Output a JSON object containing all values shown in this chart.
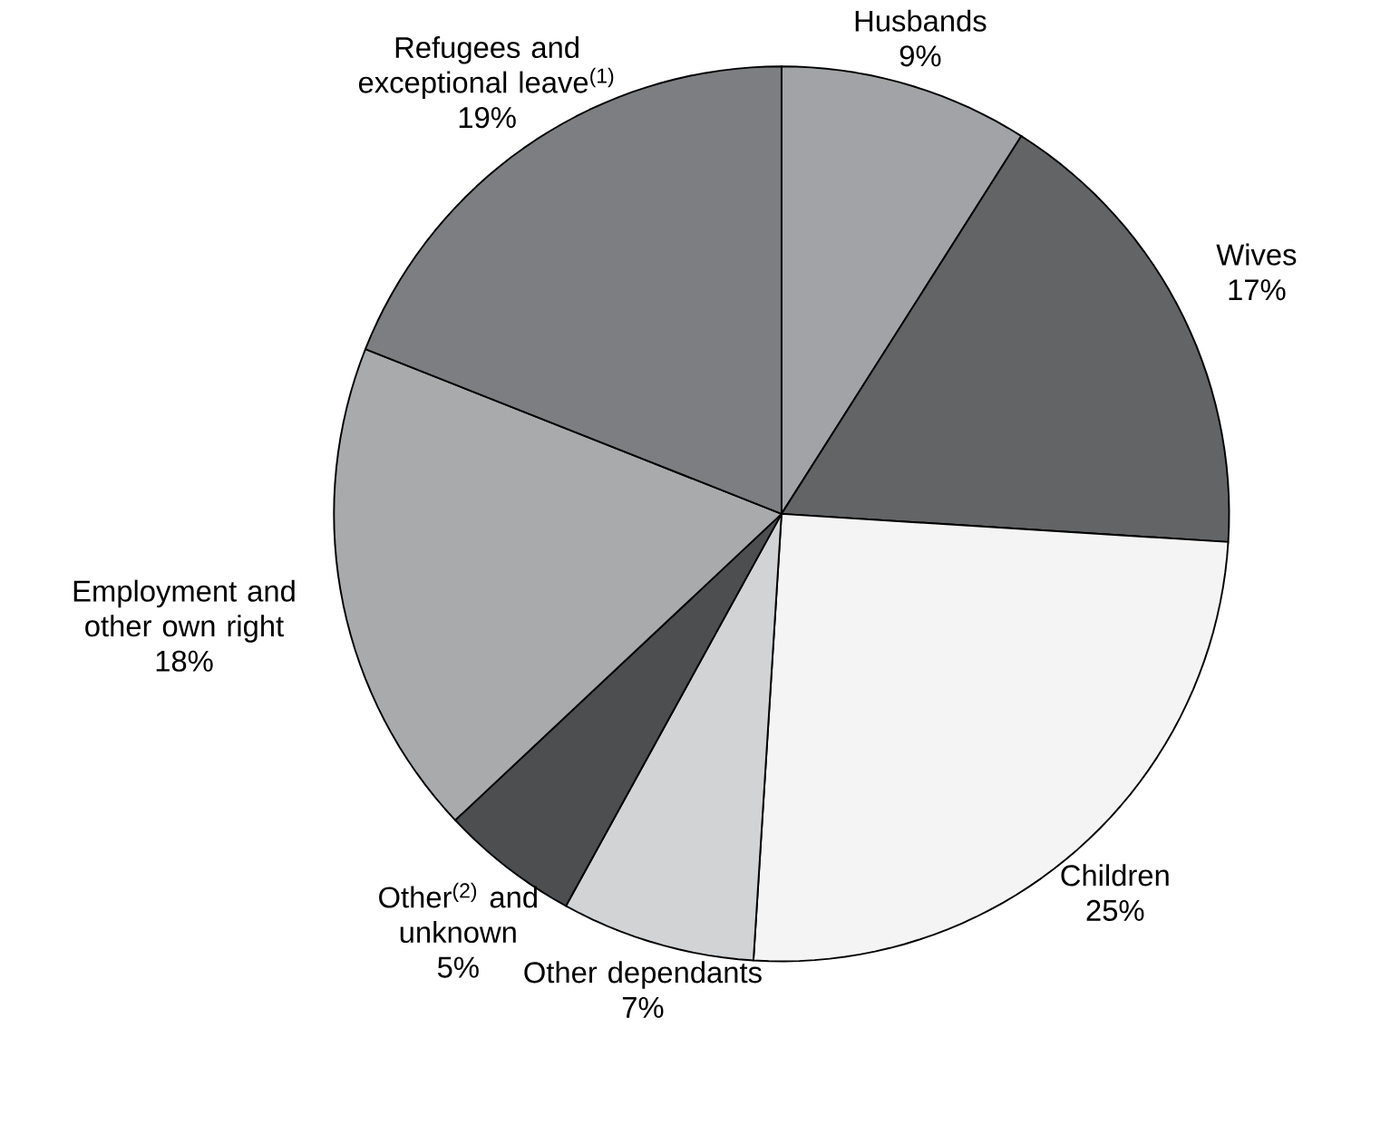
{
  "chart_data": {
    "type": "pie",
    "categories": [
      "Husbands",
      "Wives",
      "Children",
      "Other dependants",
      "Other$^{(2)}$ and unknown",
      "Employment and other own right",
      "Refugees and exceptional leave$^{(1)}$"
    ],
    "values": [
      9,
      17,
      25,
      7,
      5,
      18,
      19
    ],
    "value_labels": [
      "9%",
      "17%",
      "25%",
      "7%",
      "5%",
      "18%",
      "19%"
    ],
    "colors": [
      "#a2a3a6",
      "#636466",
      "#f4f4f4",
      "#d2d3d4",
      "#4d4e50",
      "#a9aaac",
      "#7d7e81"
    ]
  }
}
